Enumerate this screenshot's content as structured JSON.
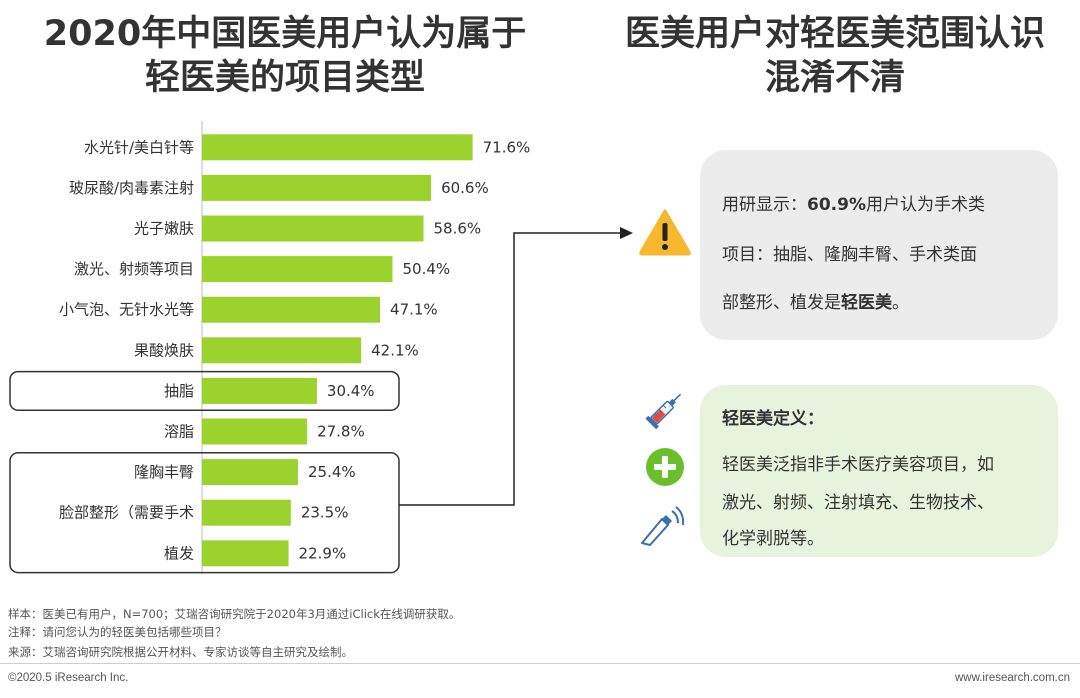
{
  "left_title": {
    "line1": "2020年中国医美用户认为属于",
    "line2": "轻医美的项目类型"
  },
  "right_title": {
    "line1": "医美用户对轻医美范围认识",
    "line2": "混淆不清"
  },
  "chart_data": {
    "type": "bar",
    "orientation": "horizontal",
    "categories": [
      "水光针/美白针等",
      "玻尿酸/肉毒素注射",
      "光子嫩肤",
      "激光、射频等项目",
      "小气泡、无针水光等",
      "果酸焕肤",
      "抽脂",
      "溶脂",
      "隆胸丰臀",
      "脸部整形（需要手术",
      "植发"
    ],
    "values": [
      71.6,
      60.6,
      58.6,
      50.4,
      47.1,
      42.1,
      30.4,
      27.8,
      25.4,
      23.5,
      22.9
    ],
    "value_labels": [
      "71.6%",
      "60.6%",
      "58.6%",
      "50.4%",
      "47.1%",
      "42.1%",
      "30.4%",
      "27.8%",
      "25.4%",
      "23.5%",
      "22.9%"
    ],
    "unit": "%",
    "bar_color": "#9bd22d",
    "xlim": [
      0,
      80
    ],
    "highlighted": [
      "抽脂",
      "隆胸丰臀",
      "脸部整形（需要手术",
      "植发"
    ]
  },
  "info_box": {
    "prefix": "用研显示：",
    "stat": "60.9%",
    "line1_rest": "用户认为手术类",
    "line2": "项目：抽脂、隆胸丰臀、手术类面",
    "line3_pre": "部整形、植发是",
    "line3_bold": "轻医美",
    "line3_post": "。"
  },
  "definition_box": {
    "title": "轻医美定义：",
    "line1": "轻医美泛指非手术医疗美容项目，如",
    "line2": "激光、射频、注射填充、生物技术、",
    "line3": "化学剥脱等。"
  },
  "icons": [
    "warning-icon",
    "syringe-icon",
    "plus-icon",
    "ultrasound-probe-icon"
  ],
  "colors": {
    "bar": "#9bd22d",
    "warning": "#f5b82e",
    "plus": "#6cbf2c",
    "info_bg": "#ececec",
    "def_bg": "#e8f3dd"
  },
  "footnotes": {
    "sample": "样本：医美已有用户，N=700；艾瑞咨询研究院于2020年3月通过iClick在线调研获取。",
    "note": "注释：请问您认为的轻医美包括哪些项目？",
    "source": "来源：艾瑞咨询研究院根据公开材料、专家访谈等自主研究及绘制。"
  },
  "footer": {
    "copyright": "©2020.5 iResearch Inc.",
    "website": "www.iresearch.com.cn"
  }
}
